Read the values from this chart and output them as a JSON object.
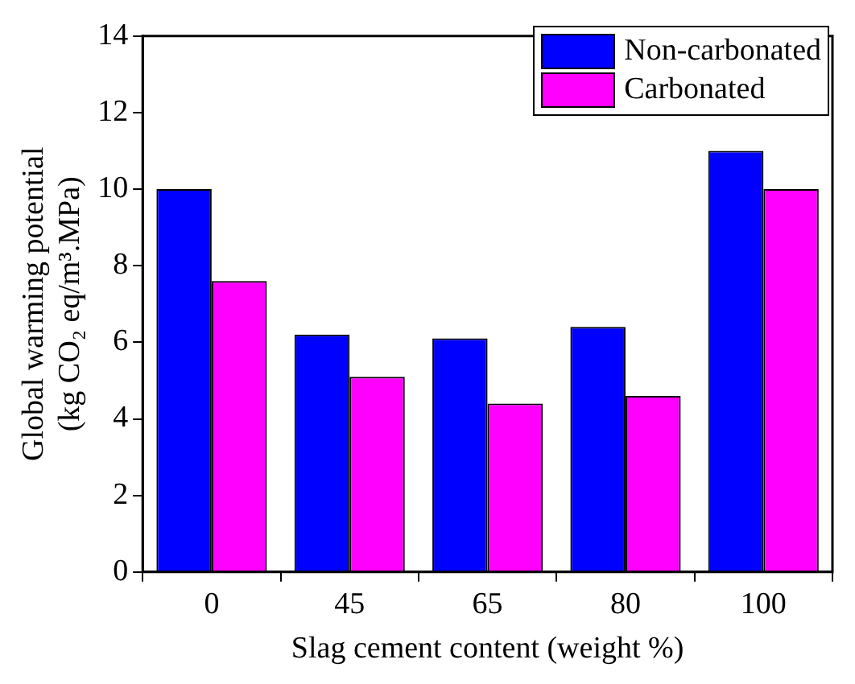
{
  "chart_data": {
    "type": "bar",
    "xlabel": "Slag cement content (weight %)",
    "ylabel": "Global warming potential\n(kg CO₂ eq/m³.MPa)",
    "categories": [
      "0",
      "45",
      "65",
      "80",
      "100"
    ],
    "series": [
      {
        "name": "Non-carbonated",
        "color": "#0000ff",
        "values": [
          10,
          6.2,
          6.1,
          6.4,
          11
        ]
      },
      {
        "name": "Carbonated",
        "color": "#ff00ff",
        "values": [
          7.6,
          5.1,
          4.4,
          4.6,
          10
        ]
      }
    ],
    "ylim": [
      0,
      14
    ],
    "yticks": [
      0,
      2,
      4,
      6,
      8,
      10,
      12,
      14
    ],
    "grid": false,
    "legend": "top right"
  }
}
